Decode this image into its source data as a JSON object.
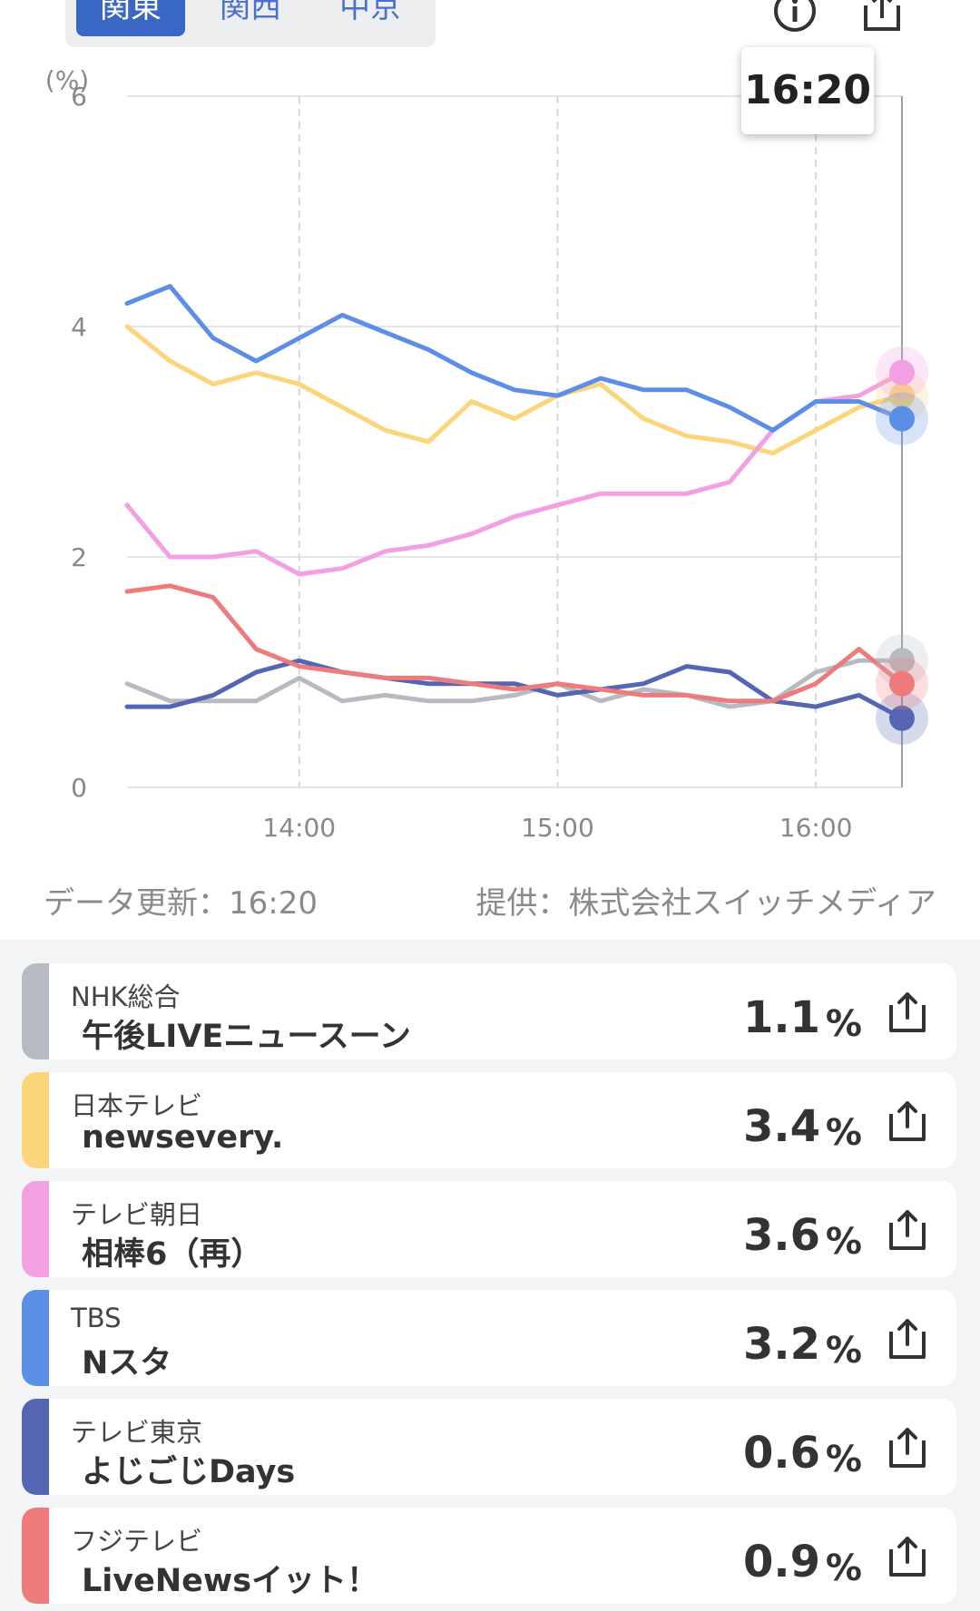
{
  "region_tabs": [
    {
      "label": "関東",
      "active": true
    },
    {
      "label": "関西",
      "active": false
    },
    {
      "label": "中京",
      "active": false
    }
  ],
  "icons": {
    "info": "info-circle-icon",
    "share": "share-upload-icon"
  },
  "tooltip_time": "16:20",
  "footer": {
    "update": "データ更新：16:20",
    "provider": "提供：株式会社スイッチメディア"
  },
  "chart_data": {
    "type": "line",
    "ylabel": "(%)",
    "ylim": [
      0,
      6
    ],
    "yticks": [
      "0",
      "2",
      "4",
      "6"
    ],
    "x_start": "13:20",
    "x_end": "16:20",
    "x_ticks": [
      "14:00",
      "15:00",
      "16:00"
    ],
    "x": [
      "13:20",
      "13:30",
      "13:40",
      "13:50",
      "14:00",
      "14:10",
      "14:20",
      "14:30",
      "14:40",
      "14:50",
      "15:00",
      "15:10",
      "15:20",
      "15:30",
      "15:40",
      "15:50",
      "16:00",
      "16:10",
      "16:20"
    ],
    "series": [
      {
        "color": "#b6bbc2",
        "values": [
          0.9,
          0.75,
          0.75,
          0.75,
          0.95,
          0.75,
          0.8,
          0.75,
          0.75,
          0.8,
          0.9,
          0.75,
          0.85,
          0.8,
          0.7,
          0.75,
          1.0,
          1.1,
          1.1
        ]
      },
      {
        "color": "#fcd57a",
        "values": [
          4.0,
          3.7,
          3.5,
          3.6,
          3.5,
          3.3,
          3.1,
          3.0,
          3.35,
          3.2,
          3.4,
          3.5,
          3.2,
          3.05,
          3.0,
          2.9,
          3.1,
          3.3,
          3.4
        ]
      },
      {
        "color": "#f39fe3",
        "values": [
          2.45,
          2.0,
          2.0,
          2.05,
          1.85,
          1.9,
          2.05,
          2.1,
          2.2,
          2.35,
          2.45,
          2.55,
          2.55,
          2.55,
          2.65,
          3.1,
          3.35,
          3.4,
          3.6
        ]
      },
      {
        "color": "#5c8ee8",
        "values": [
          4.2,
          4.35,
          3.9,
          3.7,
          3.9,
          4.1,
          3.95,
          3.8,
          3.6,
          3.45,
          3.4,
          3.55,
          3.45,
          3.45,
          3.3,
          3.1,
          3.35,
          3.35,
          3.2
        ]
      },
      {
        "color": "#5466b2",
        "values": [
          0.7,
          0.7,
          0.8,
          1.0,
          1.1,
          1.0,
          0.95,
          0.9,
          0.9,
          0.9,
          0.8,
          0.85,
          0.9,
          1.05,
          1.0,
          0.75,
          0.7,
          0.8,
          0.6
        ]
      },
      {
        "color": "#ee7b7b",
        "values": [
          1.7,
          1.75,
          1.65,
          1.2,
          1.05,
          1.0,
          0.95,
          0.95,
          0.9,
          0.85,
          0.9,
          0.85,
          0.8,
          0.8,
          0.75,
          0.75,
          0.9,
          1.2,
          0.9
        ]
      }
    ]
  },
  "channels": [
    {
      "station": "NHK総合",
      "program": "午後LIVEニュースーン",
      "rating": "1.1",
      "unit": "%",
      "color": "#b6bbc2"
    },
    {
      "station": "日本テレビ",
      "program": "newsevery.",
      "rating": "3.4",
      "unit": "%",
      "color": "#fcd57a"
    },
    {
      "station": "テレビ朝日",
      "program": "相棒6（再）",
      "rating": "3.6",
      "unit": "%",
      "color": "#f39fe3"
    },
    {
      "station": "TBS",
      "program": "Nスタ",
      "rating": "3.2",
      "unit": "%",
      "color": "#5c8ee8"
    },
    {
      "station": "テレビ東京",
      "program": "よじごじDays",
      "rating": "0.6",
      "unit": "%",
      "color": "#5466b2"
    },
    {
      "station": "フジテレビ",
      "program": "LiveNewsイット！",
      "rating": "0.9",
      "unit": "%",
      "color": "#ee7b7b"
    }
  ]
}
